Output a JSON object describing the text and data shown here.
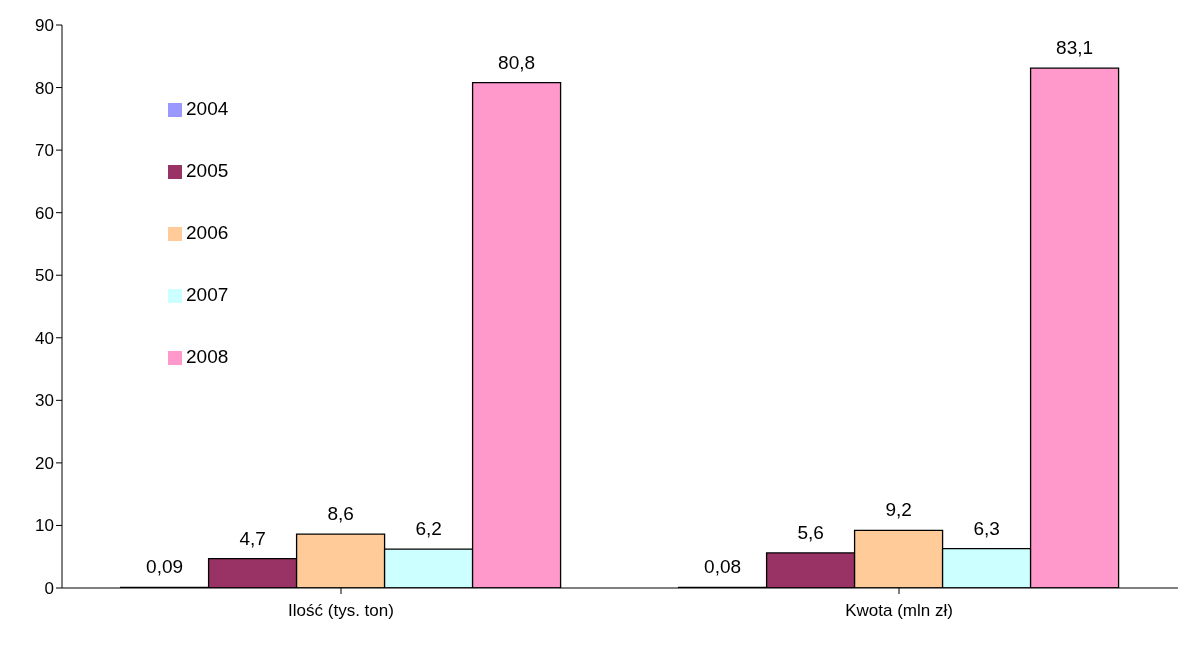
{
  "chart_data": {
    "type": "bar",
    "categories": [
      "Ilość (tys. ton)",
      "Kwota (mln zł)"
    ],
    "series": [
      {
        "name": "2004",
        "color": "#9999ff",
        "values": [
          0.09,
          0.08
        ],
        "value_labels": [
          "0,09",
          "0,08"
        ]
      },
      {
        "name": "2005",
        "color": "#993366",
        "values": [
          4.7,
          5.6
        ],
        "value_labels": [
          "4,7",
          "5,6"
        ]
      },
      {
        "name": "2006",
        "color": "#ffcc99",
        "values": [
          8.6,
          9.2
        ],
        "value_labels": [
          "8,6",
          "9,2"
        ]
      },
      {
        "name": "2007",
        "color": "#ccffff",
        "values": [
          6.2,
          6.3
        ],
        "value_labels": [
          "6,2",
          "6,3"
        ]
      },
      {
        "name": "2008",
        "color": "#ff99cc",
        "values": [
          80.8,
          83.1
        ],
        "value_labels": [
          "80,8",
          "83,1"
        ]
      }
    ],
    "ylim": [
      0,
      90
    ],
    "yticks": [
      0,
      10,
      20,
      30,
      40,
      50,
      60,
      70,
      80,
      90
    ],
    "grid": false,
    "legend": "top left"
  }
}
